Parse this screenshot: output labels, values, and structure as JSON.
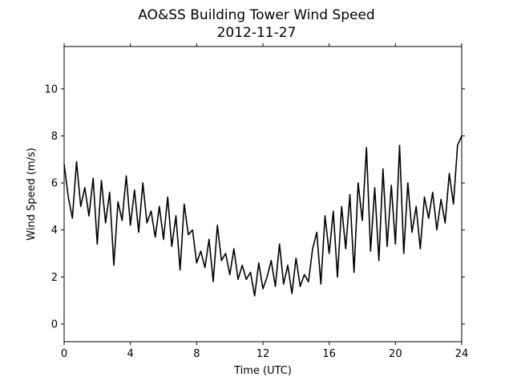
{
  "chart_data": {
    "type": "line",
    "title": "AO&SS Building Tower Wind Speed",
    "subtitle": "2012-11-27",
    "xlabel": "Time (UTC)",
    "ylabel": "Wind Speed (m/s)",
    "xlim": [
      0,
      24
    ],
    "ylim": [
      -0.75,
      11.8
    ],
    "x_ticks": [
      0,
      4,
      8,
      12,
      16,
      20,
      24
    ],
    "y_ticks": [
      0,
      2,
      4,
      6,
      8,
      10
    ],
    "grid": false,
    "line_color": "#000000",
    "series": [
      {
        "x": [
          0.0,
          0.25,
          0.5,
          0.75,
          1.0,
          1.25,
          1.5,
          1.75,
          2.0,
          2.25,
          2.5,
          2.75,
          3.0,
          3.25,
          3.5,
          3.75,
          4.0,
          4.25,
          4.5,
          4.75,
          5.0,
          5.25,
          5.5,
          5.75,
          6.0,
          6.25,
          6.5,
          6.75,
          7.0,
          7.25,
          7.5,
          7.75,
          8.0,
          8.25,
          8.5,
          8.75,
          9.0,
          9.25,
          9.5,
          9.75,
          10.0,
          10.25,
          10.5,
          10.75,
          11.0,
          11.25,
          11.5,
          11.75,
          12.0,
          12.25,
          12.5,
          12.75,
          13.0,
          13.25,
          13.5,
          13.75,
          14.0,
          14.25,
          14.5,
          14.75,
          15.0,
          15.25,
          15.5,
          15.75,
          16.0,
          16.25,
          16.5,
          16.75,
          17.0,
          17.25,
          17.5,
          17.75,
          18.0,
          18.25,
          18.5,
          18.75,
          19.0,
          19.25,
          19.5,
          19.75,
          20.0,
          20.25,
          20.5,
          20.75,
          21.0,
          21.25,
          21.5,
          21.75,
          22.0,
          22.25,
          22.5,
          22.75,
          23.0,
          23.25,
          23.5,
          23.75,
          24.0
        ],
        "values": [
          6.8,
          5.4,
          4.5,
          6.9,
          5.0,
          5.8,
          4.6,
          6.2,
          3.4,
          6.1,
          4.3,
          5.6,
          2.5,
          5.2,
          4.4,
          6.3,
          4.2,
          5.7,
          3.9,
          6.0,
          4.3,
          4.8,
          3.7,
          5.0,
          3.6,
          5.4,
          3.3,
          4.6,
          2.3,
          5.1,
          3.8,
          4.0,
          2.6,
          3.1,
          2.4,
          3.6,
          1.8,
          4.2,
          2.7,
          3.0,
          2.1,
          3.2,
          1.9,
          2.5,
          1.9,
          2.2,
          1.2,
          2.6,
          1.5,
          2.0,
          2.7,
          1.6,
          3.4,
          1.7,
          2.5,
          1.3,
          2.8,
          1.6,
          2.1,
          1.8,
          3.2,
          3.9,
          1.7,
          4.6,
          3.0,
          4.8,
          2.0,
          5.0,
          3.2,
          5.5,
          2.2,
          6.0,
          4.4,
          7.5,
          3.1,
          5.8,
          2.7,
          6.6,
          3.3,
          5.9,
          3.4,
          7.6,
          3.0,
          6.0,
          3.9,
          5.0,
          3.2,
          5.4,
          4.5,
          5.6,
          4.0,
          5.3,
          4.3,
          6.4,
          5.1,
          7.6,
          8.0
        ]
      }
    ]
  }
}
